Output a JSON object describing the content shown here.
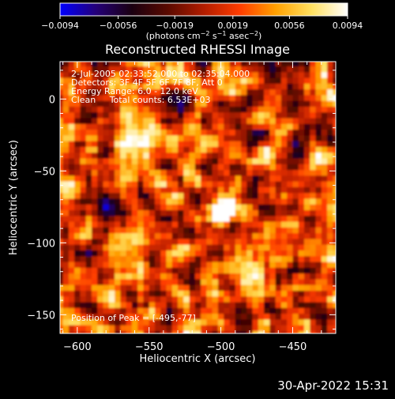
{
  "chart_data": {
    "type": "heatmap",
    "title": "Reconstructed RHESSI Image",
    "xlabel": "Heliocentric X (arcsec)",
    "ylabel": "Heliocentric Y (arcsec)",
    "xlim": [
      -612,
      -420
    ],
    "ylim": [
      -163,
      26
    ],
    "x_ticks": [
      -600,
      -550,
      -500,
      -450
    ],
    "x_tick_labels": [
      "−600",
      "−550",
      "−500",
      "−450"
    ],
    "y_ticks": [
      0,
      -50,
      -100,
      -150
    ],
    "y_tick_labels": [
      "0",
      "−50",
      "−100",
      "−150"
    ],
    "colorbar": {
      "range": [
        -0.0094,
        0.0094
      ],
      "ticks": [
        -0.0094,
        -0.0056,
        -0.0019,
        0.0019,
        0.0056,
        0.0094
      ],
      "tick_labels": [
        "−0.0094",
        "−0.0056",
        "−0.0019",
        "0.0019",
        "0.0056",
        "0.0094"
      ],
      "unit_parts": {
        "a": "(photons cm",
        "b": "−2",
        "c": " s",
        "d": "−1",
        "e": " asec",
        "f": "−2",
        "g": ")"
      },
      "colors": [
        "#0000ff",
        "#240078",
        "#1a0010",
        "#5a0a00",
        "#b21d00",
        "#ff3c00",
        "#ffa000",
        "#ffe060",
        "#ffffff"
      ]
    },
    "annotations": [
      "2-Jul-2005 02:33:52.000 to 02:35:04.000",
      "Detectors: 3F 4F 5F 6F 7F 8F, Att 0",
      "Energy Range: 6.0 - 12.0 keV",
      "Clean     Total counts: 6.53E+03"
    ],
    "peak_label": "Position of Peak = [-495,-77]",
    "peak": {
      "x": -495,
      "y": -77
    },
    "secondary_sources": [
      {
        "x": -555,
        "y": -42,
        "strength": 0.45
      },
      {
        "x": -525,
        "y": -45,
        "strength": 0.35
      },
      {
        "x": -560,
        "y": -100,
        "strength": 0.3
      },
      {
        "x": -480,
        "y": -115,
        "strength": 0.3
      },
      {
        "x": -595,
        "y": -20,
        "strength": 0.25
      }
    ]
  },
  "footer": {
    "timestamp": "30-Apr-2022 15:31"
  }
}
